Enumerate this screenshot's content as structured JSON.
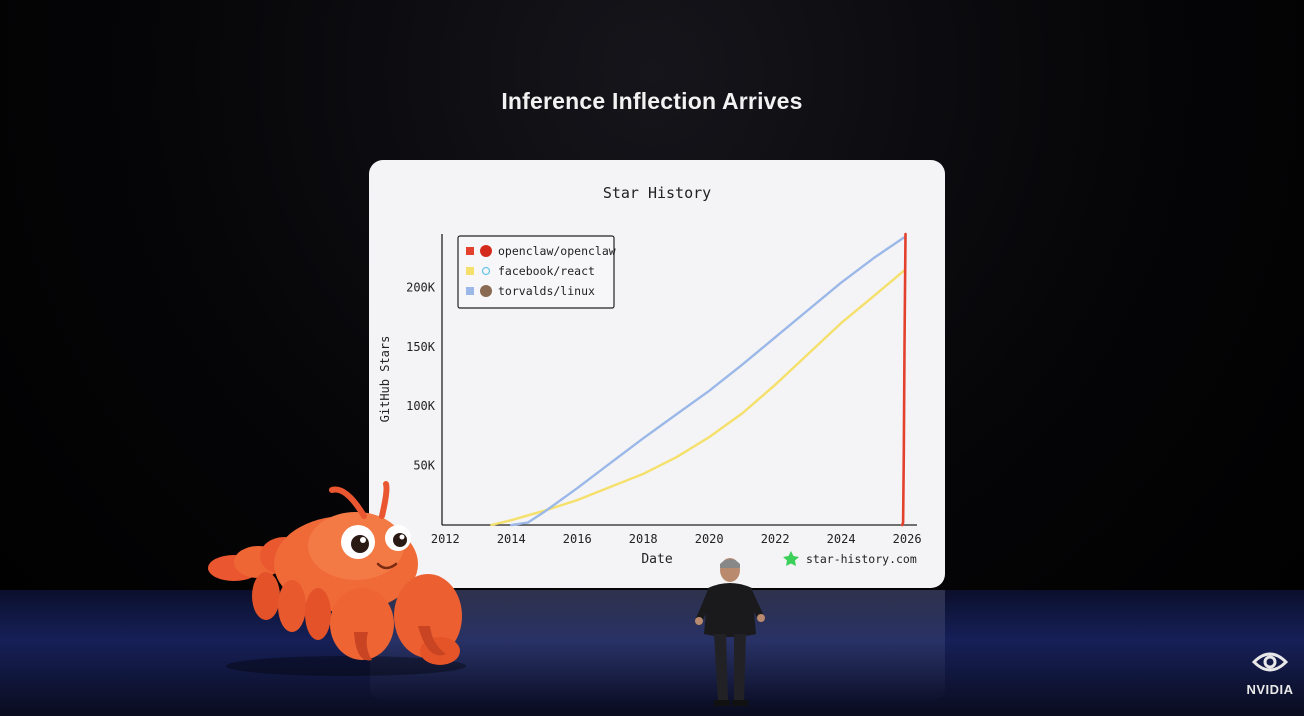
{
  "slide": {
    "title": "Inference Inflection Arrives"
  },
  "brand": {
    "name": "NVIDIA",
    "accent": "#76b900"
  },
  "chart_data": {
    "type": "line",
    "title": "Star History",
    "xlabel": "Date",
    "ylabel": "GitHub Stars",
    "xlim": [
      2011.9,
      2026.3
    ],
    "ylim": [
      0,
      245000
    ],
    "x_ticks": [
      "2012",
      "2014",
      "2016",
      "2018",
      "2020",
      "2022",
      "2024",
      "2026"
    ],
    "y_ticks": [
      "50K",
      "100K",
      "150K",
      "200K"
    ],
    "legend_position": "top-left",
    "watermark": "star-history.com",
    "series": [
      {
        "name": "openclaw/openclaw",
        "color": "#e3412e",
        "icon": "red-circle-avatar",
        "points": [
          [
            2025.85,
            0
          ],
          [
            2025.88,
            2000
          ],
          [
            2025.9,
            60000
          ],
          [
            2025.92,
            150000
          ],
          [
            2025.95,
            245000
          ]
        ]
      },
      {
        "name": "facebook/react",
        "color": "#f5e06b",
        "icon": "react-atom-icon",
        "points": [
          [
            2013.4,
            0
          ],
          [
            2014.0,
            4000
          ],
          [
            2015.0,
            12000
          ],
          [
            2016.0,
            21000
          ],
          [
            2017.0,
            32000
          ],
          [
            2018.0,
            43000
          ],
          [
            2019.0,
            57000
          ],
          [
            2020.0,
            74000
          ],
          [
            2021.0,
            94000
          ],
          [
            2022.0,
            118000
          ],
          [
            2023.0,
            144000
          ],
          [
            2024.0,
            170000
          ],
          [
            2025.0,
            193000
          ],
          [
            2025.9,
            214000
          ]
        ]
      },
      {
        "name": "torvalds/linux",
        "color": "#9bb8e8",
        "icon": "person-avatar",
        "points": [
          [
            2014.0,
            0
          ],
          [
            2014.5,
            2000
          ],
          [
            2015.0,
            11000
          ],
          [
            2016.0,
            31000
          ],
          [
            2017.0,
            52000
          ],
          [
            2018.0,
            73000
          ],
          [
            2019.0,
            93000
          ],
          [
            2020.0,
            113000
          ],
          [
            2021.0,
            135000
          ],
          [
            2022.0,
            158000
          ],
          [
            2023.0,
            181000
          ],
          [
            2024.0,
            204000
          ],
          [
            2025.0,
            225000
          ],
          [
            2025.9,
            242000
          ]
        ]
      }
    ]
  }
}
